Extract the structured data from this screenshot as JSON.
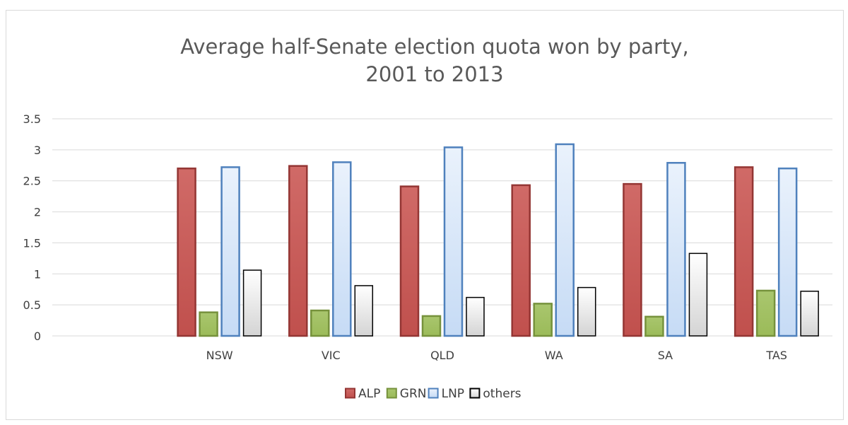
{
  "chart_data": {
    "type": "bar",
    "title_lines": [
      "Average half-Senate election quota won by party,",
      "2001 to 2013"
    ],
    "xlabel": "",
    "ylabel": "",
    "categories": [
      "",
      "NSW",
      "VIC",
      "QLD",
      "WA",
      "SA",
      "TAS"
    ],
    "ylim": [
      0,
      3.5
    ],
    "yticks": [
      "0",
      "0.5",
      "1",
      "1.5",
      "2",
      "2.5",
      "3",
      "3.5"
    ],
    "ytick_values": [
      0,
      0.5,
      1,
      1.5,
      2,
      2.5,
      3,
      3.5
    ],
    "grid": true,
    "legend_position": "bottom",
    "series": [
      {
        "name": "ALP",
        "values": [
          null,
          2.7,
          2.74,
          2.41,
          2.43,
          2.45,
          2.72
        ],
        "fill": "#c0504d",
        "fill_light": "#d06a67",
        "stroke": "#943634"
      },
      {
        "name": "GRN",
        "values": [
          null,
          0.38,
          0.41,
          0.32,
          0.52,
          0.31,
          0.73
        ],
        "fill": "#9bbb59",
        "fill_light": "#a9c66e",
        "stroke": "#76923c"
      },
      {
        "name": "LNP",
        "values": [
          null,
          2.72,
          2.8,
          3.04,
          3.09,
          2.79,
          2.7
        ],
        "fill": "#c6dbf5",
        "fill_light": "#eaf2fc",
        "stroke": "#4f81bd"
      },
      {
        "name": "others",
        "values": [
          null,
          1.06,
          0.81,
          0.62,
          0.78,
          1.33,
          0.72
        ],
        "fill": "#d4d4d4",
        "fill_light": "#ffffff",
        "stroke": "#000000"
      }
    ]
  }
}
